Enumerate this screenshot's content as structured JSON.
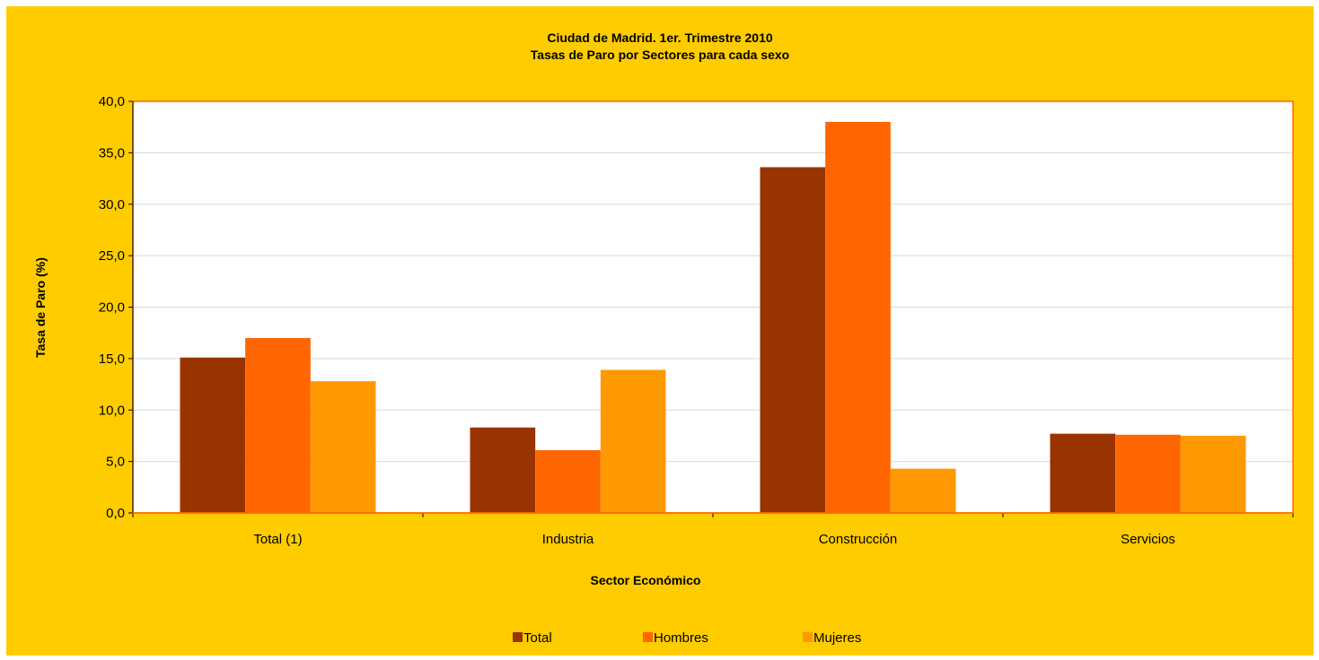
{
  "chart_data": {
    "type": "bar",
    "title": "Ciudad de Madrid. 1er. Trimestre 2010",
    "subtitle": "Tasas de Paro por Sectores para cada sexo",
    "xlabel": "Sector Económico",
    "ylabel": "Tasa de Paro (%)",
    "ylim": [
      0,
      40
    ],
    "ytick_step": 5,
    "ytick_labels": [
      "0,0",
      "5,0",
      "10,0",
      "15,0",
      "20,0",
      "25,0",
      "30,0",
      "35,0",
      "40,0"
    ],
    "categories": [
      "Total (1)",
      "Industria",
      "Construcción",
      "Servicios"
    ],
    "series": [
      {
        "name": "Total",
        "color": "#993300",
        "values": [
          15.1,
          8.3,
          33.6,
          7.7
        ]
      },
      {
        "name": "Hombres",
        "color": "#FF6600",
        "values": [
          17.0,
          6.1,
          38.0,
          7.6
        ]
      },
      {
        "name": "Mujeres",
        "color": "#FF9900",
        "values": [
          12.8,
          13.9,
          4.3,
          7.5
        ]
      }
    ],
    "grid": true,
    "legend_position": "bottom"
  },
  "colors": {
    "background": "#FFCC00",
    "plot_background": "#FFFFFF",
    "plot_border": "#FF6600",
    "gridline": "#D9D9D9"
  }
}
